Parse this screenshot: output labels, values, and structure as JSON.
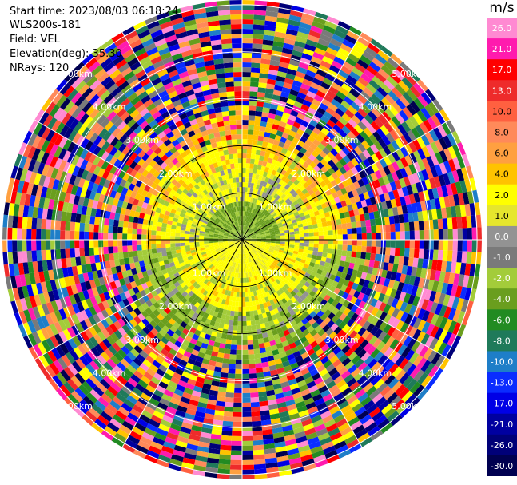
{
  "header": {
    "start_time": "Start time: 2023/08/03 06:18:24",
    "station": "WLS200s-181",
    "field": "Field: VEL",
    "elevation": "Elevation(deg): 35.30",
    "nrays": "NRays: 120"
  },
  "chart_data": {
    "type": "heatmap",
    "subtype": "polar-ppi",
    "field": "VEL",
    "unit": "m/s",
    "nrays": 120,
    "range_rings_km": [
      1.0,
      2.0,
      3.0,
      4.0,
      5.0
    ],
    "ring_labels": [
      "1.00km",
      "2.00km",
      "3.00km",
      "4.00km",
      "5.00km"
    ],
    "colorbar": {
      "label": "m/s",
      "ticks": [
        "26.0",
        "21.0",
        "17.0",
        "13.0",
        "10.0",
        "8.0",
        "6.0",
        "4.0",
        "2.0",
        "1.0",
        "0.0",
        "-1.0",
        "-2.0",
        "-4.0",
        "-6.0",
        "-8.0",
        "-10.0",
        "-13.0",
        "-17.0",
        "-21.0",
        "-26.0",
        "-30.0"
      ],
      "colors": [
        "#ff8ad2",
        "#ff1bae",
        "#ff0000",
        "#ee2b2b",
        "#ff6040",
        "#ff8a5a",
        "#ffa040",
        "#ffc300",
        "#ffff00",
        "#e6e62d",
        "#939393",
        "#7a7a7a",
        "#a3cc3a",
        "#6a9e1e",
        "#228b22",
        "#1f7a5a",
        "#1e7ec8",
        "#0a2cff",
        "#0000e6",
        "#0000a0",
        "#000078",
        "#000050"
      ]
    },
    "grid": true
  }
}
